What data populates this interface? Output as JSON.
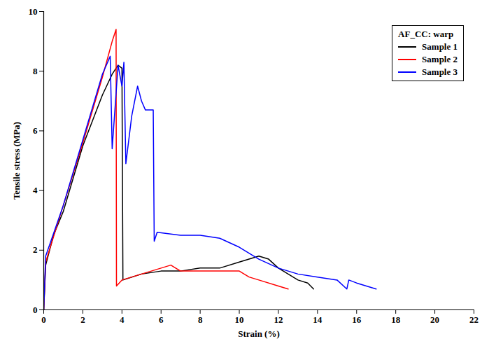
{
  "chart_data": {
    "type": "line",
    "x_label": "Strain (%)",
    "y_label": "Tensile stress (MPa)",
    "xlim": [
      0,
      22
    ],
    "xticks": [
      0,
      2,
      4,
      6,
      8,
      10,
      12,
      14,
      16,
      18,
      20,
      22
    ],
    "ylim": [
      0,
      10
    ],
    "yticks": [
      0,
      2,
      4,
      6,
      8,
      10
    ],
    "grid": false,
    "legend": "upper right",
    "legend_title": "AF_CC: warp",
    "series": [
      {
        "name": "Sample 1",
        "color": "#000000",
        "x": [
          0,
          0.1,
          0.5,
          1,
          2,
          3,
          3.5,
          3.8,
          4,
          4.05,
          5,
          6,
          7,
          8,
          9,
          10,
          11,
          11.5,
          12,
          13,
          13.5,
          13.8
        ],
        "values": [
          0,
          1.5,
          2.5,
          3.3,
          5.5,
          7.2,
          7.9,
          8.2,
          8.1,
          1.0,
          1.2,
          1.3,
          1.3,
          1.4,
          1.4,
          1.6,
          1.8,
          1.7,
          1.4,
          1.0,
          0.9,
          0.7
        ]
      },
      {
        "name": "Sample 2",
        "color": "#ff0000",
        "x": [
          0,
          0.1,
          1,
          2,
          3,
          3.5,
          3.7,
          3.72,
          4,
          5,
          6,
          6.5,
          7,
          8,
          9,
          10,
          10.5,
          11,
          12,
          12.5
        ],
        "values": [
          0,
          1.6,
          3.5,
          5.6,
          7.8,
          9.0,
          9.4,
          0.8,
          1.0,
          1.2,
          1.4,
          1.5,
          1.3,
          1.3,
          1.3,
          1.3,
          1.1,
          1.0,
          0.8,
          0.7
        ]
      },
      {
        "name": "Sample 3",
        "color": "#0000ff",
        "x": [
          0,
          0.1,
          1,
          2,
          3,
          3.4,
          3.5,
          3.8,
          4,
          4.1,
          4.2,
          4.5,
          4.8,
          5,
          5.2,
          5.6,
          5.65,
          5.8,
          7,
          8,
          9,
          10,
          11,
          12,
          13,
          14,
          15,
          15.5,
          15.6,
          16,
          17
        ],
        "values": [
          0,
          1.8,
          3.5,
          5.7,
          7.9,
          8.5,
          5.4,
          8.2,
          7.5,
          8.3,
          4.9,
          6.5,
          7.5,
          7.0,
          6.7,
          6.7,
          2.3,
          2.6,
          2.5,
          2.5,
          2.4,
          2.1,
          1.7,
          1.4,
          1.2,
          1.1,
          1.0,
          0.7,
          1.0,
          0.9,
          0.7
        ]
      }
    ]
  }
}
